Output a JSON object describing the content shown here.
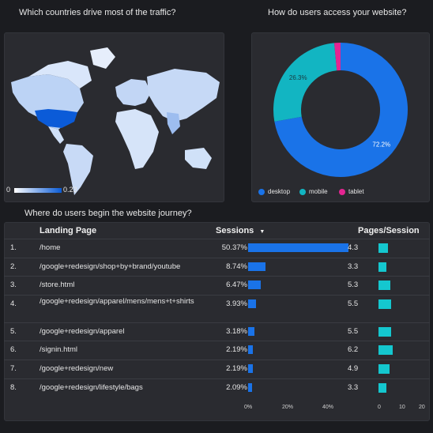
{
  "titles": {
    "map": "Which countries drive most of the traffic?",
    "donut": "How do users access your website?",
    "table": "Where do users begin the website journey?"
  },
  "map": {
    "legend_min": "0",
    "legend_max": "0.23"
  },
  "donut": {
    "slices": [
      {
        "label": "desktop",
        "value": 72.2,
        "value_label": "72.2%",
        "color": "#1a73e8"
      },
      {
        "label": "mobile",
        "value": 26.3,
        "value_label": "26.3%",
        "color": "#12b5c2"
      },
      {
        "label": "tablet",
        "value": 1.5,
        "value_label": "",
        "color": "#e52592"
      }
    ]
  },
  "table": {
    "headers": {
      "landing": "Landing Page",
      "sessions": "Sessions",
      "sort_arrow": "▼",
      "pages": "Pages/Session"
    },
    "rows": [
      {
        "n": "1.",
        "page": "/home",
        "sessions": "50.37%",
        "sessions_value": 50.37,
        "pps": "4.3",
        "pps_value": 4.3
      },
      {
        "n": "2.",
        "page": "/google+redesign/shop+by+brand/youtube",
        "sessions": "8.74%",
        "sessions_value": 8.74,
        "pps": "3.3",
        "pps_value": 3.3
      },
      {
        "n": "3.",
        "page": "/store.html",
        "sessions": "6.47%",
        "sessions_value": 6.47,
        "pps": "5.3",
        "pps_value": 5.3
      },
      {
        "n": "4.",
        "page": "/google+redesign/apparel/mens/mens+t+shirts",
        "sessions": "3.93%",
        "sessions_value": 3.93,
        "pps": "5.5",
        "pps_value": 5.5
      },
      {
        "n": "5.",
        "page": "/google+redesign/apparel",
        "sessions": "3.18%",
        "sessions_value": 3.18,
        "pps": "5.5",
        "pps_value": 5.5
      },
      {
        "n": "6.",
        "page": "/signin.html",
        "sessions": "2.19%",
        "sessions_value": 2.19,
        "pps": "6.2",
        "pps_value": 6.2
      },
      {
        "n": "7.",
        "page": "/google+redesign/new",
        "sessions": "2.19%",
        "sessions_value": 2.19,
        "pps": "4.9",
        "pps_value": 4.9
      },
      {
        "n": "8.",
        "page": "/google+redesign/lifestyle/bags",
        "sessions": "2.09%",
        "sessions_value": 2.09,
        "pps": "3.3",
        "pps_value": 3.3
      }
    ],
    "sessions_axis": [
      "0%",
      "20%",
      "40%"
    ],
    "pps_axis": [
      "0",
      "10",
      "20"
    ]
  }
}
